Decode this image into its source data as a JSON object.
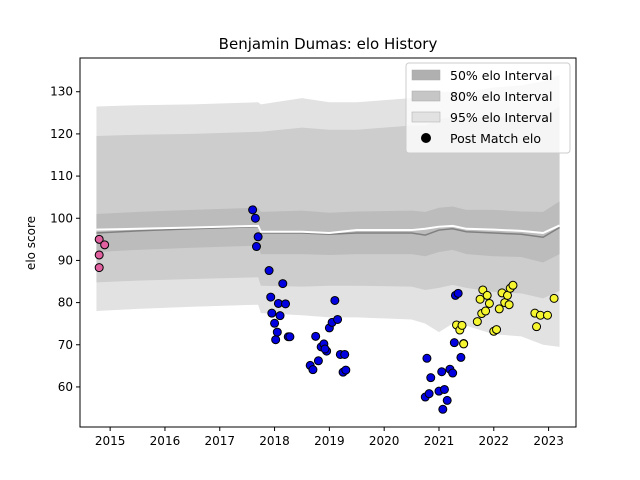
{
  "chart_data": {
    "type": "scatter",
    "title": "Benjamin Dumas: elo History",
    "xlabel": "",
    "ylabel": "elo score",
    "xlim": [
      2014.45,
      2023.5
    ],
    "ylim": [
      50.5,
      138
    ],
    "grid": false,
    "legend_position": "top-right",
    "x_ticks": [
      2015,
      2016,
      2017,
      2018,
      2019,
      2020,
      2021,
      2022,
      2023
    ],
    "x_tick_labels": [
      "2015",
      "2016",
      "2017",
      "2018",
      "2019",
      "2020",
      "2021",
      "2022",
      "2023"
    ],
    "y_ticks": [
      60,
      70,
      80,
      90,
      100,
      110,
      120,
      130
    ],
    "y_tick_labels": [
      "60",
      "70",
      "80",
      "90",
      "100",
      "110",
      "120",
      "130"
    ],
    "legend": [
      {
        "label": "50% elo Interval",
        "kind": "band",
        "color": "#b0b0b0"
      },
      {
        "label": "80% elo Interval",
        "kind": "band",
        "color": "#c6c6c6"
      },
      {
        "label": "95% elo Interval",
        "kind": "band",
        "color": "#e2e2e2"
      },
      {
        "label": "Post Match elo",
        "kind": "marker",
        "color": "#000000"
      }
    ],
    "bands": {
      "x": [
        2014.75,
        2015.5,
        2016.5,
        2017.7,
        2017.75,
        2018.5,
        2019.0,
        2019.5,
        2020.5,
        2020.75,
        2021.0,
        2021.25,
        2021.5,
        2022.0,
        2022.5,
        2022.9,
        2023.2
      ],
      "mean": [
        96.5,
        97.0,
        97.5,
        98.0,
        96.5,
        96.5,
        96.2,
        96.5,
        96.5,
        96.0,
        97.2,
        97.5,
        96.8,
        96.5,
        96.2,
        95.5,
        97.8
      ],
      "lo50": [
        92.0,
        92.5,
        93.0,
        93.5,
        91.5,
        91.5,
        91.3,
        91.5,
        91.5,
        91.0,
        92.0,
        92.5,
        91.5,
        91.0,
        90.8,
        89.5,
        91.5
      ],
      "hi50": [
        101.0,
        101.5,
        102.0,
        102.5,
        101.5,
        101.8,
        101.3,
        101.6,
        101.8,
        101.5,
        102.5,
        102.8,
        102.0,
        102.0,
        101.6,
        101.5,
        104.0
      ],
      "lo80": [
        84.8,
        85.2,
        85.6,
        86.0,
        84.0,
        83.8,
        84.0,
        84.0,
        83.8,
        83.0,
        83.5,
        84.2,
        83.5,
        82.5,
        82.2,
        81.0,
        82.8
      ],
      "hi80": [
        119.5,
        119.8,
        120.0,
        120.5,
        120.5,
        121.5,
        121.0,
        121.0,
        122.0,
        122.0,
        123.5,
        124.0,
        123.5,
        124.0,
        124.0,
        124.0,
        126.5
      ],
      "lo95": [
        78.0,
        78.5,
        79.0,
        79.5,
        77.5,
        77.0,
        76.5,
        76.5,
        76.0,
        75.0,
        73.0,
        75.0,
        74.5,
        72.5,
        72.0,
        70.0,
        69.5
      ],
      "hi95": [
        126.5,
        126.8,
        127.0,
        127.5,
        127.0,
        128.5,
        127.5,
        127.5,
        128.5,
        129.0,
        130.0,
        130.0,
        130.0,
        131.0,
        131.5,
        132.5,
        134.0
      ],
      "median": [
        97.3,
        97.5,
        97.8,
        98.2,
        96.8,
        96.8,
        96.5,
        97.2,
        97.2,
        97.5,
        98.0,
        98.2,
        97.5,
        97.3,
        97.0,
        96.5,
        98.3
      ]
    },
    "series": [
      {
        "color": "#e060a0",
        "x": [
          2014.8,
          2014.8,
          2014.8,
          2014.9
        ],
        "y": [
          95.0,
          91.3,
          88.3,
          93.7
        ]
      },
      {
        "color": "#0000e0",
        "x": [
          2017.6,
          2017.65,
          2017.67,
          2017.7,
          2017.9,
          2017.93,
          2017.95,
          2018.0,
          2018.02,
          2018.05,
          2018.07,
          2018.1,
          2018.15,
          2018.2,
          2018.25,
          2018.28,
          2018.65,
          2018.7,
          2018.75,
          2018.8,
          2018.85,
          2018.9,
          2018.95,
          2018.92,
          2019.0,
          2019.05,
          2019.1,
          2019.15,
          2019.2,
          2019.25,
          2019.28,
          2019.3,
          2020.75,
          2020.78,
          2020.82,
          2020.85,
          2021.0,
          2021.05,
          2021.07,
          2021.1,
          2021.15,
          2021.2,
          2021.25,
          2021.28,
          2021.3,
          2021.35,
          2021.4,
          2021.45
        ],
        "y": [
          102.0,
          100.0,
          93.3,
          95.6,
          87.6,
          81.3,
          77.5,
          75.1,
          71.2,
          73.0,
          79.8,
          76.9,
          84.5,
          79.7,
          71.9,
          71.9,
          65.1,
          64.1,
          72.0,
          66.2,
          69.5,
          70.2,
          68.5,
          69.0,
          74.0,
          75.3,
          80.5,
          76.0,
          67.7,
          63.5,
          67.7,
          64.0,
          57.6,
          66.8,
          58.4,
          62.2,
          59.0,
          63.6,
          54.7,
          59.4,
          56.8,
          64.2,
          63.3,
          70.5,
          81.7,
          82.2,
          67.0,
          70.3
        ]
      },
      {
        "color": "#f5f530",
        "x": [
          2021.32,
          2021.38,
          2021.42,
          2021.45,
          2021.7,
          2021.75,
          2021.78,
          2021.8,
          2021.85,
          2021.88,
          2021.92,
          2022.0,
          2022.05,
          2022.1,
          2022.15,
          2022.2,
          2022.25,
          2022.28,
          2022.3,
          2022.35,
          2022.75,
          2022.78,
          2022.85,
          2022.98,
          2023.1
        ],
        "y": [
          74.7,
          73.5,
          74.6,
          70.2,
          75.5,
          80.8,
          77.4,
          83.0,
          78.0,
          81.7,
          79.8,
          73.2,
          73.6,
          78.5,
          82.3,
          80.0,
          81.7,
          79.5,
          83.4,
          84.1,
          77.5,
          74.3,
          77.0,
          77.0,
          81.0
        ]
      }
    ]
  }
}
